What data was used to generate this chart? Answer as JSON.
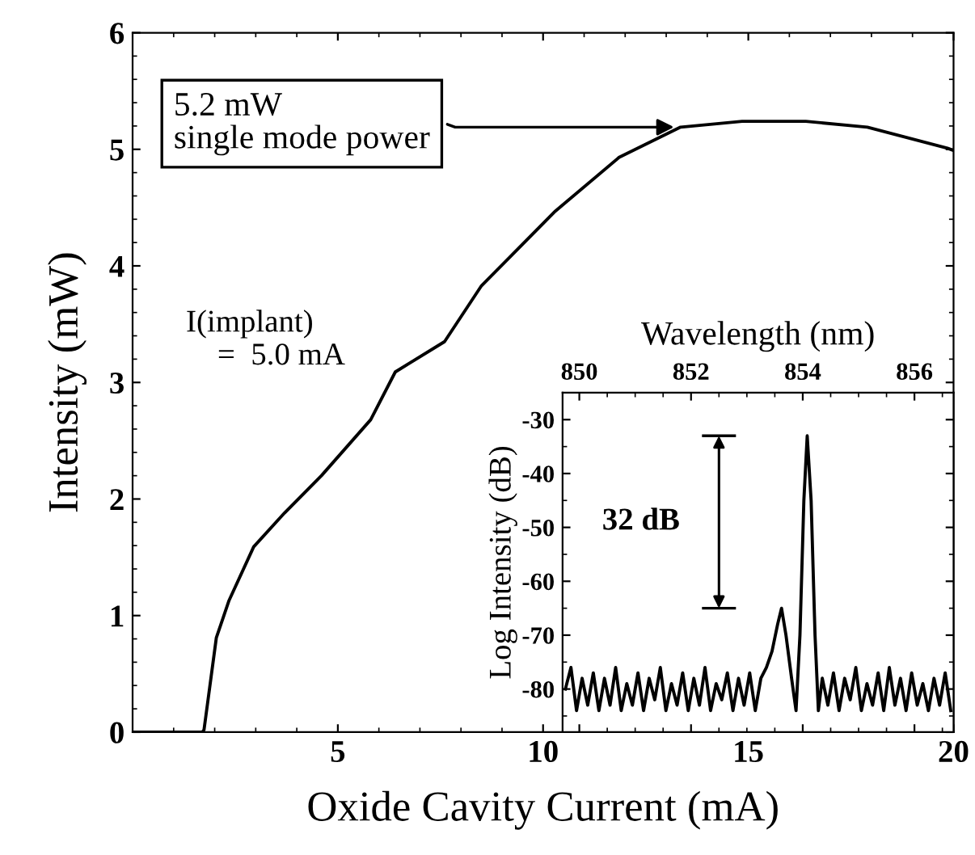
{
  "chart_data": [
    {
      "type": "line",
      "xlabel": "Oxide Cavity Current (mA)",
      "ylabel": "Intensity (mW)",
      "xlim": [
        0,
        20
      ],
      "ylim": [
        0,
        6
      ],
      "xticks": [
        5,
        10,
        15,
        20
      ],
      "yticks": [
        0,
        1,
        2,
        3,
        4,
        5,
        6
      ],
      "legend": false,
      "series": [
        {
          "color": "#000000",
          "x": [
            0,
            1.0,
            1.7,
            1.74,
            2.04,
            2.35,
            2.95,
            3.7,
            4.6,
            5.8,
            6.4,
            7.6,
            8.5,
            10.3,
            11.85,
            13.35,
            14.85,
            16.4,
            17.9,
            19.85,
            20
          ],
          "values": [
            0,
            0,
            0,
            0.02,
            0.81,
            1.13,
            1.59,
            1.88,
            2.2,
            2.68,
            3.09,
            3.35,
            3.83,
            4.47,
            4.93,
            5.19,
            5.24,
            5.24,
            5.19,
            5.01,
            4.99
          ]
        }
      ],
      "annotations": [
        {
          "text": "5.2 mW\nsingle mode power",
          "x": 13.3,
          "y": 5.19
        },
        "I(implant)\n    =  5.0 mA"
      ]
    },
    {
      "type": "line",
      "xlabel": "Wavelength (nm)",
      "ylabel": "Log Intensity (dB)",
      "xlim": [
        849.7,
        856.7
      ],
      "ylim": [
        -88,
        -25
      ],
      "xticks": [
        850,
        852,
        854,
        856
      ],
      "yticks": [
        -30,
        -40,
        -50,
        -60,
        -70,
        -80
      ],
      "legend": false,
      "series": [
        {
          "color": "#000000",
          "x": [
            849.75,
            849.85,
            849.95,
            850.05,
            850.15,
            850.25,
            850.35,
            850.45,
            850.55,
            850.65,
            850.75,
            850.85,
            850.95,
            851.05,
            851.15,
            851.25,
            851.35,
            851.45,
            851.55,
            851.65,
            851.75,
            851.85,
            851.95,
            852.05,
            852.15,
            852.25,
            852.35,
            852.45,
            852.55,
            852.65,
            852.75,
            852.85,
            852.95,
            853.05,
            853.15,
            853.25,
            853.35,
            853.45,
            853.55,
            853.62,
            853.7,
            853.8,
            853.88,
            853.95,
            854.02,
            854.08,
            854.15,
            854.22,
            854.28,
            854.35,
            854.45,
            854.55,
            854.65,
            854.75,
            854.85,
            854.95,
            855.05,
            855.15,
            855.25,
            855.35,
            855.45,
            855.55,
            855.65,
            855.75,
            855.85,
            855.95,
            856.05,
            856.15,
            856.25,
            856.35,
            856.45,
            856.55,
            856.65
          ],
          "values": [
            -80,
            -76,
            -84,
            -78,
            -83,
            -77,
            -84,
            -78,
            -83,
            -76,
            -84,
            -79,
            -83,
            -77,
            -84,
            -78,
            -82,
            -76,
            -84,
            -79,
            -83,
            -77,
            -84,
            -78,
            -83,
            -76,
            -84,
            -79,
            -82,
            -77,
            -84,
            -78,
            -83,
            -77,
            -84,
            -78,
            -76,
            -73,
            -68,
            -65,
            -70,
            -78,
            -84,
            -70,
            -45,
            -33,
            -45,
            -70,
            -84,
            -78,
            -83,
            -77,
            -84,
            -78,
            -82,
            -76,
            -84,
            -79,
            -83,
            -77,
            -84,
            -76,
            -83,
            -78,
            -84,
            -77,
            -83,
            -79,
            -84,
            -78,
            -83,
            -77,
            -84
          ]
        }
      ],
      "annotations": [
        "32 dB"
      ]
    }
  ]
}
